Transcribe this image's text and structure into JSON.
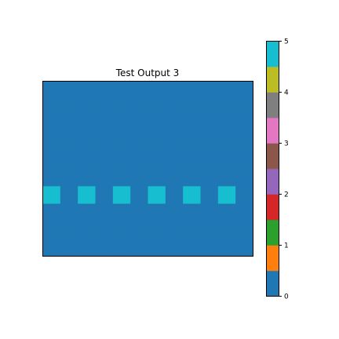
{
  "chart_data": {
    "type": "heatmap",
    "title": "Test Output 3",
    "xlabel": "",
    "ylabel": "",
    "grid": false,
    "axes_visible": false,
    "rows": 10,
    "cols": 12,
    "cells": [
      [
        0,
        0,
        0,
        0,
        0,
        0,
        0,
        0,
        0,
        0,
        0,
        0
      ],
      [
        0,
        0,
        0,
        0,
        0,
        0,
        0,
        0,
        0,
        0,
        0,
        0
      ],
      [
        0,
        0,
        0,
        0,
        0,
        0,
        0,
        0,
        0,
        0,
        0,
        0
      ],
      [
        0,
        0,
        0,
        0,
        0,
        0,
        0,
        0,
        0,
        0,
        0,
        0
      ],
      [
        0,
        0,
        0,
        0,
        0,
        0,
        0,
        0,
        0,
        0,
        0,
        0
      ],
      [
        0,
        0,
        0,
        0,
        0,
        0,
        0,
        0,
        0,
        0,
        0,
        0
      ],
      [
        5,
        0,
        5,
        0,
        5,
        0,
        5,
        0,
        5,
        0,
        5,
        0
      ],
      [
        0,
        0,
        0,
        0,
        0,
        0,
        0,
        0,
        0,
        0,
        0,
        0
      ],
      [
        0,
        0,
        0,
        0,
        0,
        0,
        0,
        0,
        0,
        0,
        0,
        0
      ],
      [
        0,
        0,
        0,
        0,
        0,
        0,
        0,
        0,
        0,
        0,
        0,
        0
      ]
    ],
    "colorbar": {
      "range": [
        0,
        5
      ],
      "ticks": [
        "0",
        "1",
        "2",
        "3",
        "4",
        "5"
      ],
      "placement": "right",
      "colors": [
        "#1f77b4",
        "#ff7f0e",
        "#2ca02c",
        "#d62728",
        "#9467bd",
        "#8c564b",
        "#e377c2",
        "#7f7f7f",
        "#bcbd22",
        "#17becf"
      ]
    }
  }
}
